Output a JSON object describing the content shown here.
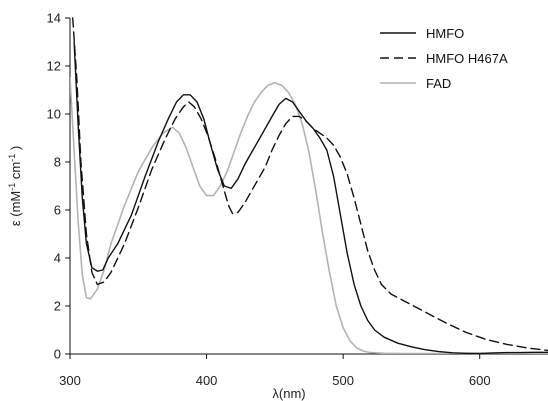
{
  "chart_data": {
    "type": "line",
    "title": "",
    "xlabel": "λ(nm)",
    "ylabel_parts": [
      "ε (mM",
      "-1",
      "  cm",
      "-1",
      " )"
    ],
    "xlim": [
      300,
      650
    ],
    "ylim": [
      0,
      14
    ],
    "x_ticks": [
      300,
      400,
      500,
      600
    ],
    "y_ticks": [
      0,
      2,
      4,
      6,
      8,
      10,
      12,
      14
    ],
    "grid": false,
    "legend_position": "top-right",
    "series": [
      {
        "name": "HMFO",
        "color": "#111111",
        "dash": "solid",
        "points": [
          [
            303,
            13.0
          ],
          [
            306,
            9.5
          ],
          [
            309,
            6.5
          ],
          [
            312,
            4.6
          ],
          [
            316,
            3.6
          ],
          [
            320,
            3.45
          ],
          [
            324,
            3.5
          ],
          [
            328,
            4.0
          ],
          [
            335,
            4.6
          ],
          [
            345,
            5.8
          ],
          [
            355,
            7.4
          ],
          [
            365,
            8.9
          ],
          [
            372,
            9.8
          ],
          [
            378,
            10.5
          ],
          [
            383,
            10.8
          ],
          [
            388,
            10.8
          ],
          [
            393,
            10.5
          ],
          [
            398,
            9.8
          ],
          [
            403,
            8.7
          ],
          [
            408,
            7.7
          ],
          [
            413,
            7.0
          ],
          [
            418,
            6.9
          ],
          [
            423,
            7.3
          ],
          [
            428,
            7.9
          ],
          [
            433,
            8.4
          ],
          [
            438,
            8.9
          ],
          [
            443,
            9.4
          ],
          [
            448,
            9.9
          ],
          [
            453,
            10.4
          ],
          [
            458,
            10.65
          ],
          [
            463,
            10.5
          ],
          [
            468,
            10.1
          ],
          [
            473,
            9.7
          ],
          [
            478,
            9.4
          ],
          [
            483,
            9.0
          ],
          [
            488,
            8.5
          ],
          [
            493,
            7.4
          ],
          [
            498,
            5.8
          ],
          [
            503,
            4.2
          ],
          [
            508,
            2.9
          ],
          [
            513,
            2.0
          ],
          [
            518,
            1.4
          ],
          [
            523,
            1.0
          ],
          [
            530,
            0.7
          ],
          [
            540,
            0.45
          ],
          [
            550,
            0.3
          ],
          [
            560,
            0.18
          ],
          [
            570,
            0.1
          ],
          [
            580,
            0.05
          ],
          [
            590,
            0.03
          ],
          [
            600,
            0.02
          ],
          [
            610,
            0.04
          ],
          [
            620,
            0.06
          ],
          [
            630,
            0.06
          ],
          [
            640,
            0.07
          ],
          [
            650,
            0.07
          ]
        ]
      },
      {
        "name": "HMFO H467A",
        "color": "#111111",
        "dash": "dashed",
        "points": [
          [
            302,
            14.0
          ],
          [
            305,
            11.5
          ],
          [
            308,
            8.0
          ],
          [
            312,
            5.0
          ],
          [
            316,
            3.4
          ],
          [
            320,
            2.9
          ],
          [
            325,
            3.0
          ],
          [
            330,
            3.4
          ],
          [
            340,
            4.6
          ],
          [
            350,
            6.1
          ],
          [
            360,
            7.7
          ],
          [
            370,
            9.0
          ],
          [
            377,
            9.8
          ],
          [
            383,
            10.3
          ],
          [
            387,
            10.5
          ],
          [
            391,
            10.3
          ],
          [
            396,
            9.8
          ],
          [
            401,
            9.1
          ],
          [
            406,
            8.2
          ],
          [
            411,
            7.2
          ],
          [
            416,
            6.2
          ],
          [
            419,
            5.85
          ],
          [
            423,
            5.9
          ],
          [
            428,
            6.3
          ],
          [
            433,
            6.8
          ],
          [
            438,
            7.3
          ],
          [
            443,
            7.8
          ],
          [
            448,
            8.5
          ],
          [
            453,
            9.1
          ],
          [
            458,
            9.6
          ],
          [
            463,
            9.9
          ],
          [
            468,
            9.9
          ],
          [
            473,
            9.7
          ],
          [
            478,
            9.4
          ],
          [
            483,
            9.2
          ],
          [
            488,
            9.0
          ],
          [
            493,
            8.7
          ],
          [
            498,
            8.2
          ],
          [
            503,
            7.5
          ],
          [
            508,
            6.5
          ],
          [
            513,
            5.4
          ],
          [
            518,
            4.3
          ],
          [
            523,
            3.5
          ],
          [
            528,
            2.9
          ],
          [
            535,
            2.5
          ],
          [
            545,
            2.2
          ],
          [
            555,
            1.9
          ],
          [
            565,
            1.6
          ],
          [
            575,
            1.3
          ],
          [
            590,
            0.9
          ],
          [
            605,
            0.6
          ],
          [
            620,
            0.4
          ],
          [
            635,
            0.25
          ],
          [
            650,
            0.15
          ]
        ]
      },
      {
        "name": "FAD",
        "color": "#b3b3b3",
        "dash": "solid",
        "points": [
          [
            300,
            11.5
          ],
          [
            303,
            8.5
          ],
          [
            306,
            5.5
          ],
          [
            309,
            3.3
          ],
          [
            312,
            2.35
          ],
          [
            315,
            2.3
          ],
          [
            320,
            2.7
          ],
          [
            325,
            3.5
          ],
          [
            330,
            4.6
          ],
          [
            340,
            6.2
          ],
          [
            350,
            7.6
          ],
          [
            360,
            8.6
          ],
          [
            368,
            9.2
          ],
          [
            375,
            9.45
          ],
          [
            380,
            9.2
          ],
          [
            385,
            8.6
          ],
          [
            390,
            7.8
          ],
          [
            395,
            7.0
          ],
          [
            400,
            6.6
          ],
          [
            405,
            6.6
          ],
          [
            410,
            7.0
          ],
          [
            415,
            7.6
          ],
          [
            420,
            8.4
          ],
          [
            425,
            9.2
          ],
          [
            430,
            9.9
          ],
          [
            435,
            10.5
          ],
          [
            440,
            10.9
          ],
          [
            445,
            11.2
          ],
          [
            450,
            11.3
          ],
          [
            455,
            11.2
          ],
          [
            460,
            10.9
          ],
          [
            465,
            10.4
          ],
          [
            470,
            9.6
          ],
          [
            475,
            8.4
          ],
          [
            480,
            6.8
          ],
          [
            485,
            5.0
          ],
          [
            490,
            3.4
          ],
          [
            495,
            2.0
          ],
          [
            500,
            1.1
          ],
          [
            505,
            0.55
          ],
          [
            510,
            0.25
          ],
          [
            515,
            0.12
          ],
          [
            520,
            0.06
          ],
          [
            530,
            0.03
          ],
          [
            545,
            0.02
          ],
          [
            560,
            0.02
          ],
          [
            580,
            0.02
          ],
          [
            600,
            0.02
          ],
          [
            620,
            0.02
          ],
          [
            640,
            0.02
          ],
          [
            650,
            0.02
          ]
        ]
      }
    ]
  }
}
